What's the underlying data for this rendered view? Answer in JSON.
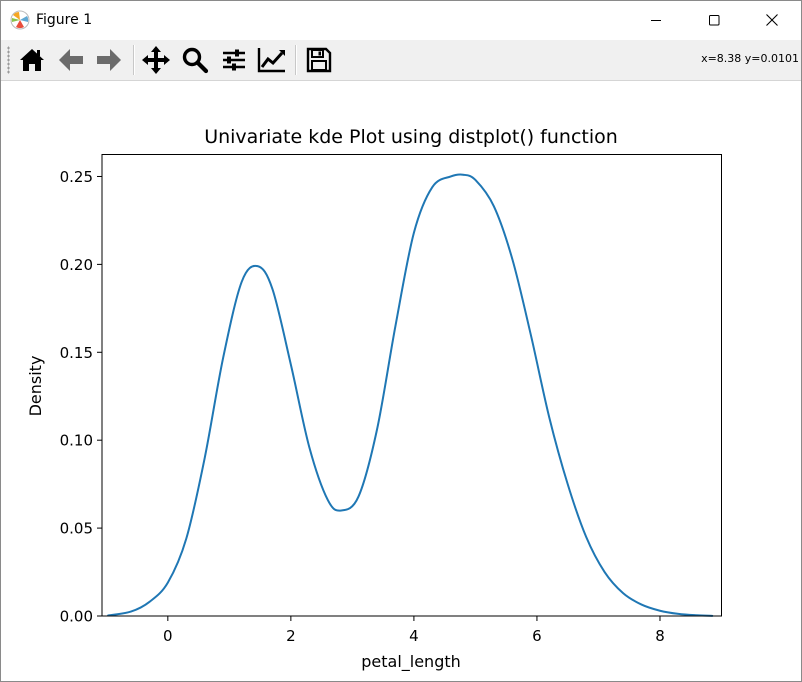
{
  "window": {
    "title": "Figure 1",
    "icons": {
      "app": "matplotlib-icon",
      "minimize": "minimize-icon",
      "maximize": "maximize-icon",
      "close": "close-icon"
    }
  },
  "toolbar": {
    "tools": [
      {
        "name": "home-icon",
        "tooltip": "Reset original view"
      },
      {
        "name": "back-arrow-icon",
        "tooltip": "Back to previous view"
      },
      {
        "name": "forward-arrow-icon",
        "tooltip": "Forward to next view"
      },
      {
        "name": "pan-move-icon",
        "tooltip": "Pan axes"
      },
      {
        "name": "zoom-magnifier-icon",
        "tooltip": "Zoom to rectangle"
      },
      {
        "name": "configure-subplots-icon",
        "tooltip": "Configure subplots"
      },
      {
        "name": "edit-curve-icon",
        "tooltip": "Edit axis, curve and image parameters"
      },
      {
        "name": "save-floppy-icon",
        "tooltip": "Save the figure"
      }
    ],
    "coordinates": "x=8.38 y=0.0101"
  },
  "chart_data": {
    "type": "line",
    "title": "Univariate kde Plot using distplot() function",
    "xlabel": "petal_length",
    "ylabel": "Density",
    "xlim": [
      -1.07,
      9.0
    ],
    "ylim": [
      0.0,
      0.2625
    ],
    "xticks": [
      0,
      2,
      4,
      6,
      8
    ],
    "yticks": [
      0.0,
      0.05,
      0.1,
      0.15,
      0.2,
      0.25
    ],
    "xtick_labels": [
      "0",
      "2",
      "4",
      "6",
      "8"
    ],
    "ytick_labels": [
      "0.00",
      "0.05",
      "0.10",
      "0.15",
      "0.20",
      "0.25"
    ],
    "grid": false,
    "series": [
      {
        "color": "#1f77b4",
        "x": [
          -0.97,
          -0.6,
          -0.3,
          0.0,
          0.3,
          0.6,
          0.9,
          1.2,
          1.46,
          1.7,
          2.0,
          2.3,
          2.6,
          2.82,
          3.1,
          3.4,
          3.7,
          4.0,
          4.3,
          4.6,
          4.8,
          5.0,
          5.3,
          5.6,
          5.9,
          6.2,
          6.5,
          6.8,
          7.1,
          7.4,
          7.7,
          8.0,
          8.3,
          8.6,
          8.85
        ],
        "y": [
          0.0003,
          0.0025,
          0.008,
          0.019,
          0.044,
          0.09,
          0.147,
          0.19,
          0.199,
          0.186,
          0.143,
          0.096,
          0.066,
          0.06,
          0.068,
          0.106,
          0.165,
          0.218,
          0.244,
          0.25,
          0.251,
          0.248,
          0.233,
          0.203,
          0.16,
          0.113,
          0.075,
          0.045,
          0.025,
          0.013,
          0.0065,
          0.003,
          0.0012,
          0.0004,
          0.0001
        ]
      }
    ]
  }
}
